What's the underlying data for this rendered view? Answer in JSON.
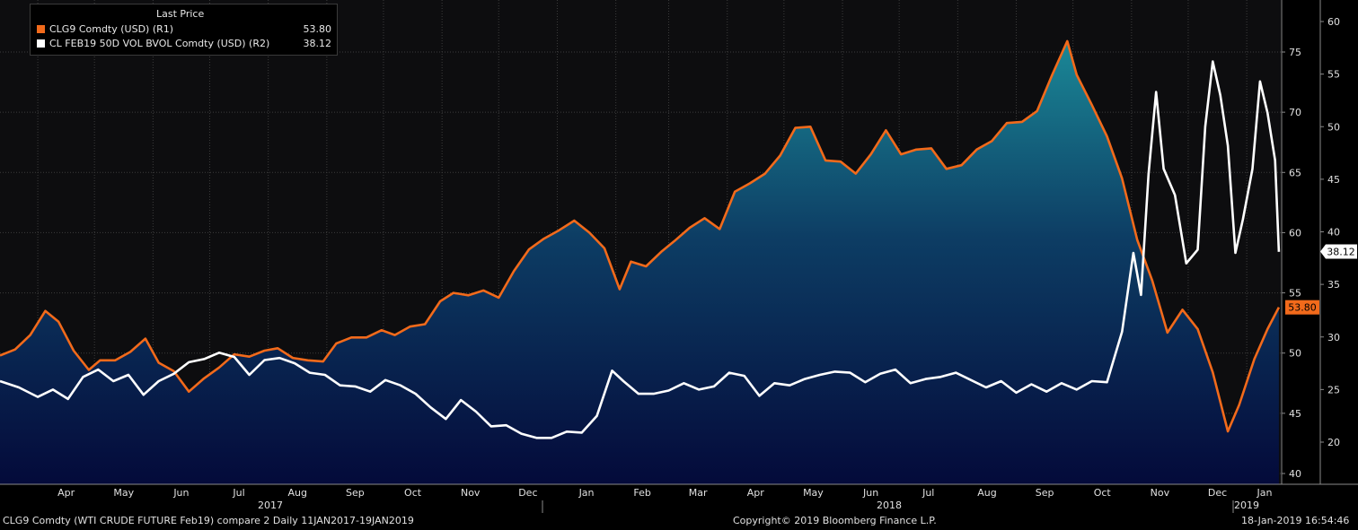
{
  "legend": {
    "header": "Last Price",
    "series": [
      {
        "label": "CLG9 Comdty (USD)  (R1)",
        "value": "53.80",
        "color": "#f26a1b"
      },
      {
        "label": "CL FEB19 50D VOL BVOL Comdty (USD)  (R2)",
        "value": "38.12",
        "color": "#ffffff"
      }
    ]
  },
  "footer": {
    "left": "CLG9 Comdty (WTI CRUDE FUTURE  Feb19) compare 2  Daily 11JAN2017-19JAN2019",
    "center": "Copyright© 2019 Bloomberg Finance L.P.",
    "right": "18-Jan-2019 16:54:46"
  },
  "colors": {
    "price": "#f26a1b",
    "vol": "#ffffff",
    "area_top": "#1b7e8e",
    "area_bottom": "#040a3a",
    "grid": "#3c3c3c"
  },
  "chart_data": {
    "type": "line",
    "x_range": [
      "2017-03-12",
      "2019-01-19"
    ],
    "month_labels": [
      "Apr",
      "May",
      "Jun",
      "Jul",
      "Aug",
      "Sep",
      "Oct",
      "Nov",
      "Dec",
      "Jan",
      "Feb",
      "Mar",
      "Apr",
      "May",
      "Jun",
      "Jul",
      "Aug",
      "Sep",
      "Oct",
      "Nov",
      "Dec",
      "Jan"
    ],
    "year_labels": [
      "2017",
      "2018",
      "2019"
    ],
    "axes": {
      "R1": {
        "ticks": [
          40,
          45,
          50,
          55,
          60,
          65,
          70,
          75
        ],
        "range": [
          39,
          79.3
        ]
      },
      "R2": {
        "ticks": [
          20,
          25,
          30,
          35,
          40,
          45,
          50,
          55,
          60
        ],
        "range": [
          17.2,
          61.6
        ]
      }
    },
    "grid": true,
    "series": [
      {
        "name": "CLG9 Comdty (USD)  (R1)",
        "axis": "R1",
        "last": "53.80",
        "x": [
          "2017-03-12",
          "2017-03-20",
          "2017-03-28",
          "2017-04-05",
          "2017-04-12",
          "2017-04-20",
          "2017-04-28",
          "2017-05-04",
          "2017-05-12",
          "2017-05-20",
          "2017-05-28",
          "2017-06-04",
          "2017-06-12",
          "2017-06-20",
          "2017-06-28",
          "2017-07-06",
          "2017-07-14",
          "2017-07-22",
          "2017-07-30",
          "2017-08-06",
          "2017-08-14",
          "2017-08-22",
          "2017-08-30",
          "2017-09-06",
          "2017-09-14",
          "2017-09-22",
          "2017-09-30",
          "2017-10-07",
          "2017-10-15",
          "2017-10-23",
          "2017-10-31",
          "2017-11-07",
          "2017-11-15",
          "2017-11-23",
          "2017-12-01",
          "2017-12-09",
          "2017-12-17",
          "2017-12-25",
          "2018-01-02",
          "2018-01-10",
          "2018-01-18",
          "2018-01-26",
          "2018-02-03",
          "2018-02-09",
          "2018-02-17",
          "2018-02-25",
          "2018-03-04",
          "2018-03-12",
          "2018-03-20",
          "2018-03-28",
          "2018-04-05",
          "2018-04-13",
          "2018-04-21",
          "2018-04-29",
          "2018-05-07",
          "2018-05-15",
          "2018-05-23",
          "2018-05-31",
          "2018-06-08",
          "2018-06-16",
          "2018-06-24",
          "2018-07-02",
          "2018-07-10",
          "2018-07-18",
          "2018-07-26",
          "2018-08-03",
          "2018-08-11",
          "2018-08-19",
          "2018-08-27",
          "2018-09-04",
          "2018-09-12",
          "2018-09-20",
          "2018-09-28",
          "2018-10-03",
          "2018-10-11",
          "2018-10-19",
          "2018-10-27",
          "2018-11-04",
          "2018-11-12",
          "2018-11-20",
          "2018-11-28",
          "2018-12-06",
          "2018-12-14",
          "2018-12-22",
          "2018-12-28",
          "2019-01-05",
          "2019-01-12",
          "2019-01-18"
        ],
        "y": [
          49.8,
          50.3,
          51.5,
          53.5,
          52.6,
          50.2,
          48.6,
          49.4,
          49.4,
          50.1,
          51.2,
          49.2,
          48.5,
          46.8,
          47.9,
          48.8,
          49.9,
          49.7,
          50.2,
          50.4,
          49.6,
          49.4,
          49.3,
          50.8,
          51.3,
          51.3,
          51.9,
          51.5,
          52.2,
          52.4,
          54.3,
          55.0,
          54.8,
          55.2,
          54.6,
          56.8,
          58.6,
          59.5,
          60.2,
          61.0,
          60.0,
          58.7,
          55.3,
          57.6,
          57.2,
          58.4,
          59.3,
          60.4,
          61.2,
          60.3,
          63.4,
          64.1,
          64.9,
          66.4,
          68.7,
          68.8,
          66.0,
          65.9,
          64.9,
          66.5,
          68.5,
          66.5,
          66.9,
          67.0,
          65.3,
          65.6,
          66.9,
          67.6,
          69.1,
          69.2,
          70.1,
          73.1,
          75.9,
          73.1,
          70.6,
          68.0,
          64.5,
          59.4,
          56.0,
          51.7,
          53.6,
          52.0,
          48.4,
          43.5,
          45.7,
          49.5,
          52.0,
          53.8
        ]
      },
      {
        "name": "CL FEB19 50D VOL BVOL Comdty (USD)  (R2)",
        "axis": "R2",
        "last": "38.12",
        "x": [
          "2017-03-12",
          "2017-03-22",
          "2017-04-01",
          "2017-04-09",
          "2017-04-17",
          "2017-04-25",
          "2017-05-03",
          "2017-05-11",
          "2017-05-19",
          "2017-05-27",
          "2017-06-04",
          "2017-06-12",
          "2017-06-20",
          "2017-06-28",
          "2017-07-06",
          "2017-07-14",
          "2017-07-22",
          "2017-07-30",
          "2017-08-07",
          "2017-08-15",
          "2017-08-23",
          "2017-08-31",
          "2017-09-08",
          "2017-09-16",
          "2017-09-24",
          "2017-10-02",
          "2017-10-10",
          "2017-10-18",
          "2017-10-26",
          "2017-11-03",
          "2017-11-11",
          "2017-11-19",
          "2017-11-27",
          "2017-12-05",
          "2017-12-13",
          "2017-12-21",
          "2017-12-29",
          "2018-01-06",
          "2018-01-14",
          "2018-01-22",
          "2018-01-30",
          "2018-02-05",
          "2018-02-13",
          "2018-02-21",
          "2018-03-01",
          "2018-03-09",
          "2018-03-17",
          "2018-03-25",
          "2018-04-02",
          "2018-04-10",
          "2018-04-18",
          "2018-04-26",
          "2018-05-04",
          "2018-05-12",
          "2018-05-20",
          "2018-05-28",
          "2018-06-05",
          "2018-06-13",
          "2018-06-21",
          "2018-06-29",
          "2018-07-07",
          "2018-07-15",
          "2018-07-23",
          "2018-07-31",
          "2018-08-08",
          "2018-08-16",
          "2018-08-24",
          "2018-09-01",
          "2018-09-09",
          "2018-09-17",
          "2018-09-25",
          "2018-10-03",
          "2018-10-11",
          "2018-10-19",
          "2018-10-27",
          "2018-11-02",
          "2018-11-06",
          "2018-11-10",
          "2018-11-14",
          "2018-11-18",
          "2018-11-24",
          "2018-11-30",
          "2018-12-06",
          "2018-12-10",
          "2018-12-14",
          "2018-12-18",
          "2018-12-22",
          "2018-12-26",
          "2018-12-30",
          "2019-01-04",
          "2019-01-08",
          "2019-01-12",
          "2019-01-16",
          "2019-01-18"
        ],
        "y": [
          25.8,
          25.2,
          24.3,
          25.0,
          24.1,
          26.2,
          26.9,
          25.8,
          26.4,
          24.5,
          25.8,
          26.5,
          27.6,
          27.9,
          28.5,
          28.1,
          26.4,
          27.8,
          28.0,
          27.5,
          26.6,
          26.4,
          25.4,
          25.3,
          24.8,
          25.9,
          25.4,
          24.6,
          23.3,
          22.2,
          24.0,
          22.9,
          21.5,
          21.6,
          20.8,
          20.4,
          20.4,
          21.0,
          20.9,
          22.5,
          26.8,
          25.8,
          24.6,
          24.6,
          24.9,
          25.6,
          25.0,
          25.3,
          26.6,
          26.3,
          24.4,
          25.6,
          25.4,
          26.0,
          26.4,
          26.7,
          26.6,
          25.7,
          26.5,
          26.9,
          25.6,
          26.0,
          26.2,
          26.6,
          25.9,
          25.2,
          25.8,
          24.7,
          25.5,
          24.8,
          25.6,
          25.0,
          25.8,
          25.7,
          30.5,
          38.0,
          34.0,
          45.5,
          53.3,
          46.0,
          43.5,
          37.0,
          38.3,
          50.0,
          56.2,
          53.0,
          48.2,
          38.0,
          41.2,
          46.0,
          54.3,
          51.3,
          46.8,
          38.1
        ]
      }
    ]
  }
}
